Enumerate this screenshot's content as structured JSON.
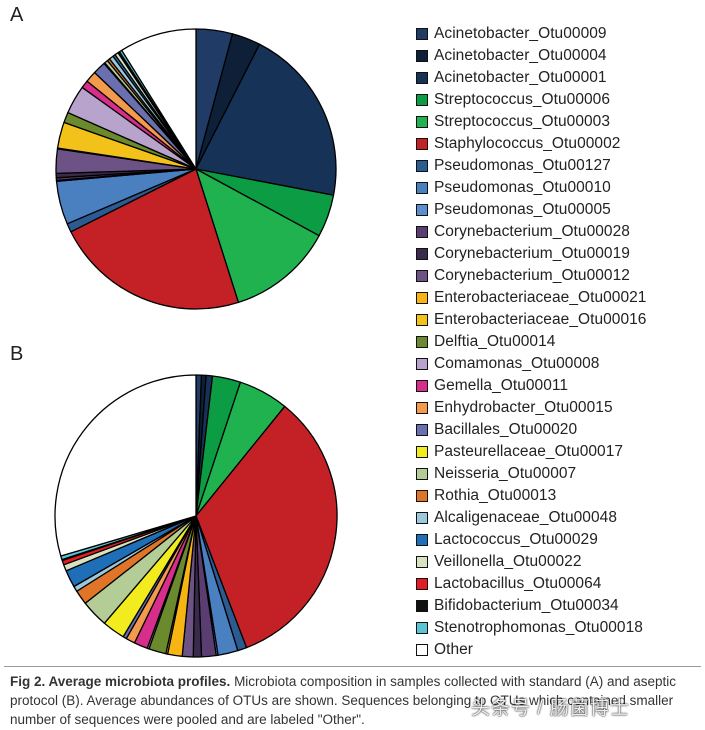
{
  "figure": {
    "panel_a_label": "A",
    "panel_b_label": "B"
  },
  "legend": [
    {
      "label": "Acinetobacter_Otu00009",
      "color": "#1f3b66"
    },
    {
      "label": "Acinetobacter_Otu00004",
      "color": "#0e1f38"
    },
    {
      "label": "Acinetobacter_Otu00001",
      "color": "#173257"
    },
    {
      "label": "Streptococcus_Otu00006",
      "color": "#0c9c43"
    },
    {
      "label": "Streptococcus_Otu00003",
      "color": "#1fb24f"
    },
    {
      "label": "Staphylococcus_Otu00002",
      "color": "#c42127"
    },
    {
      "label": "Pseudomonas_Otu00127",
      "color": "#2c5b92"
    },
    {
      "label": "Pseudomonas_Otu00010",
      "color": "#4a7fc0"
    },
    {
      "label": "Pseudomonas_Otu00005",
      "color": "#5b8fd0"
    },
    {
      "label": "Corynebacterium_Otu00028",
      "color": "#5a3e72"
    },
    {
      "label": "Corynebacterium_Otu00019",
      "color": "#3a2a4c"
    },
    {
      "label": "Corynebacterium_Otu00012",
      "color": "#6d5285"
    },
    {
      "label": "Enterobacteriaceae_Otu00021",
      "color": "#f7b514"
    },
    {
      "label": "Enterobacteriaceae_Otu00016",
      "color": "#f2c21a"
    },
    {
      "label": "Delftia_Otu00014",
      "color": "#6a8a2d"
    },
    {
      "label": "Comamonas_Otu00008",
      "color": "#b8a3cc"
    },
    {
      "label": "Gemella_Otu00011",
      "color": "#d62e8a"
    },
    {
      "label": "Enhydrobacter_Otu00015",
      "color": "#f39a4c"
    },
    {
      "label": "Bacillales_Otu00020",
      "color": "#6a6fb0"
    },
    {
      "label": "Pasteurellaceae_Otu00017",
      "color": "#f2ec1e"
    },
    {
      "label": "Neisseria_Otu00007",
      "color": "#b4cc96"
    },
    {
      "label": "Rothia_Otu00013",
      "color": "#e0752a"
    },
    {
      "label": "Alcaligenaceae_Otu00048",
      "color": "#9ac8dc"
    },
    {
      "label": "Lactococcus_Otu00029",
      "color": "#1f6fb8"
    },
    {
      "label": "Veillonella_Otu00022",
      "color": "#d8e2c0"
    },
    {
      "label": "Lactobacillus_Otu00064",
      "color": "#e31d24"
    },
    {
      "label": "Bifidobacterium_Otu00034",
      "color": "#111111"
    },
    {
      "label": "Stenotrophomonas_Otu00018",
      "color": "#5ac4d6"
    },
    {
      "label": "Other",
      "color": "#ffffff"
    }
  ],
  "chart_data": [
    {
      "type": "pie",
      "title": "A",
      "categories": [
        "Acinetobacter_Otu00009",
        "Acinetobacter_Otu00004",
        "Acinetobacter_Otu00001",
        "Streptococcus_Otu00006",
        "Streptococcus_Otu00003",
        "Staphylococcus_Otu00002",
        "Pseudomonas_Otu00127",
        "Pseudomonas_Otu00010",
        "Pseudomonas_Otu00005",
        "Corynebacterium_Otu00028",
        "Corynebacterium_Otu00019",
        "Corynebacterium_Otu00012",
        "Enterobacteriaceae_Otu00021",
        "Enterobacteriaceae_Otu00016",
        "Delftia_Otu00014",
        "Comamonas_Otu00008",
        "Gemella_Otu00011",
        "Enhydrobacter_Otu00015",
        "Bacillales_Otu00020",
        "Pasteurellaceae_Otu00017",
        "Neisseria_Otu00007",
        "Rothia_Otu00013",
        "Alcaligenaceae_Otu00048",
        "Lactococcus_Otu00029",
        "Veillonella_Otu00022",
        "Lactobacillus_Otu00064",
        "Bifidobacterium_Otu00034",
        "Stenotrophomonas_Otu00018",
        "Other"
      ],
      "values": [
        4.2,
        3.3,
        20.5,
        4.9,
        12.2,
        22.5,
        1.0,
        5.0,
        0.1,
        0.3,
        0.5,
        2.8,
        0.1,
        3.0,
        1.2,
        3.3,
        0.9,
        1.3,
        1.5,
        0.1,
        0.4,
        0.3,
        0.5,
        0.3,
        0.4,
        0.1,
        0.1,
        0.3,
        8.9
      ]
    },
    {
      "type": "pie",
      "title": "B",
      "categories": [
        "Acinetobacter_Otu00009",
        "Acinetobacter_Otu00004",
        "Acinetobacter_Otu00001",
        "Streptococcus_Otu00006",
        "Streptococcus_Otu00003",
        "Staphylococcus_Otu00002",
        "Pseudomonas_Otu00127",
        "Pseudomonas_Otu00010",
        "Pseudomonas_Otu00005",
        "Corynebacterium_Otu00028",
        "Corynebacterium_Otu00019",
        "Corynebacterium_Otu00012",
        "Enterobacteriaceae_Otu00021",
        "Enterobacteriaceae_Otu00016",
        "Delftia_Otu00014",
        "Comamonas_Otu00008",
        "Gemella_Otu00011",
        "Enhydrobacter_Otu00015",
        "Bacillales_Otu00020",
        "Pasteurellaceae_Otu00017",
        "Neisseria_Otu00007",
        "Rothia_Otu00013",
        "Alcaligenaceae_Otu00048",
        "Lactococcus_Otu00029",
        "Veillonella_Otu00022",
        "Lactobacillus_Otu00064",
        "Bifidobacterium_Otu00034",
        "Stenotrophomonas_Otu00018",
        "Other"
      ],
      "values": [
        0.6,
        0.5,
        0.7,
        3.1,
        5.5,
        32.0,
        1.0,
        2.2,
        0.2,
        1.6,
        0.9,
        1.2,
        1.6,
        0.2,
        1.9,
        0.2,
        1.5,
        1.0,
        0.4,
        2.5,
        3.0,
        1.6,
        0.6,
        1.9,
        0.7,
        0.5,
        0.1,
        0.4,
        28.4
      ]
    }
  ],
  "caption": {
    "label": "Fig 2. Average microbiota profiles.",
    "text": " Microbiota composition in samples collected with standard (A) and aseptic protocol (B). Average abundances of OTUs are shown. Sequences belonging to OTUs which contained smaller number of sequences were pooled and are labeled \"Other\"."
  },
  "watermark": "头条号 / 肠菌博士"
}
